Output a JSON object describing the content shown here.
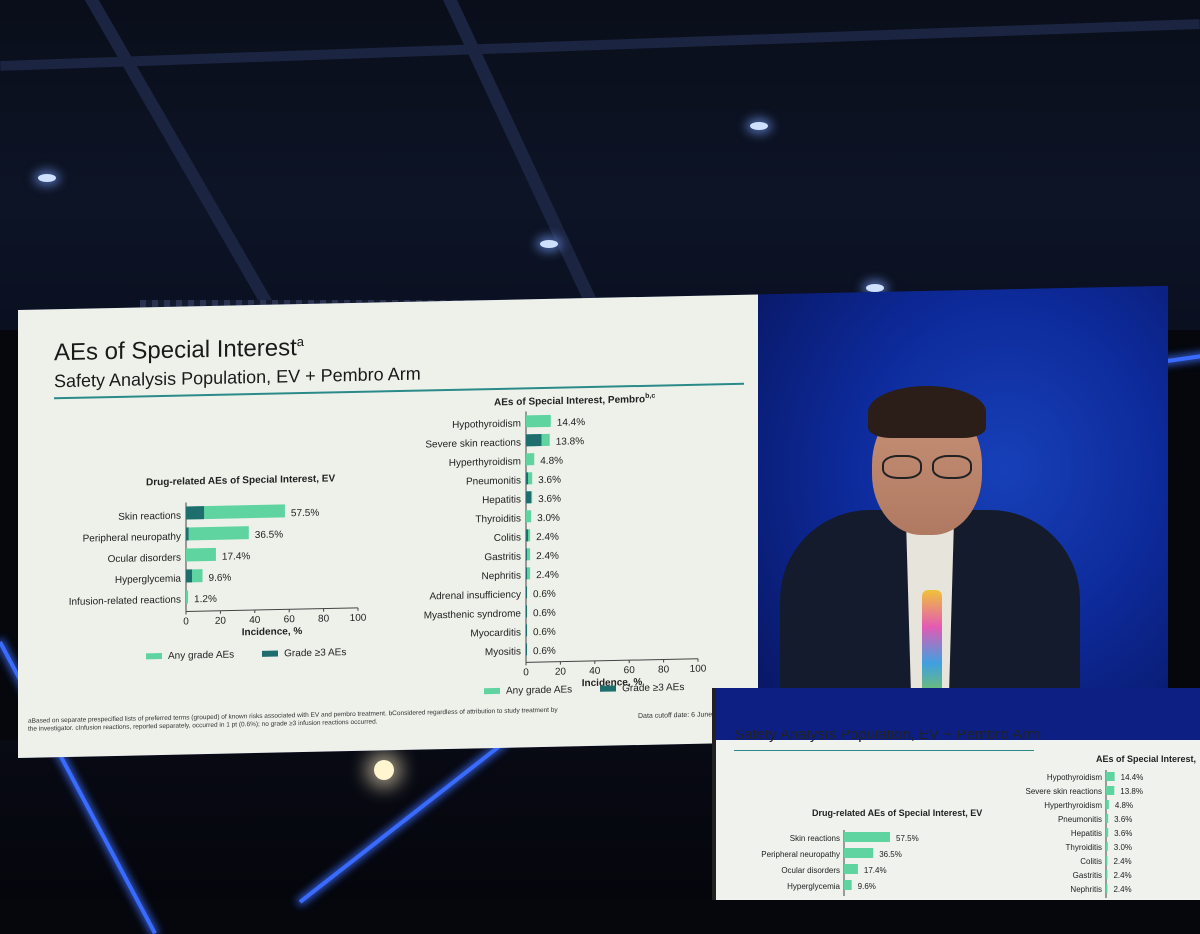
{
  "slide": {
    "title": "AEs of Special Interest",
    "title_sup": "a",
    "subtitle": "Safety Analysis Population, EV + Pembro Arm",
    "footnote": "aBased on separate prespecified lists of preferred terms (grouped) of known risks associated with EV and pembro treatment. bConsidered regardless of attribution to study treatment by the investigator. cInfusion reactions, reported separately, occurred in 1 pt (0.6%); no grade ≥3 infusion reactions occurred.",
    "cutoff": "Data cutoff date: 6 June 2025"
  },
  "chart_data": [
    {
      "type": "bar",
      "orientation": "horizontal",
      "title": "Drug-related AEs of Special Interest, EV",
      "xlabel": "Incidence, %",
      "xlim": [
        0,
        100
      ],
      "xticks": [
        "0",
        "20",
        "40",
        "60",
        "80",
        "100"
      ],
      "categories": [
        "Skin reactions",
        "Peripheral neuropathy",
        "Ocular disorders",
        "Hyperglycemia",
        "Infusion-related reactions"
      ],
      "series": [
        {
          "name": "Any grade AEs",
          "values": [
            57.5,
            36.5,
            17.4,
            9.6,
            1.2
          ]
        },
        {
          "name": "Grade ≥3 AEs",
          "values": [
            10.5,
            1.5,
            0,
            3.5,
            0
          ]
        }
      ],
      "labels": [
        "57.5%",
        "36.5%",
        "17.4%",
        "9.6%",
        "1.2%"
      ],
      "legend": "bottom"
    },
    {
      "type": "bar",
      "orientation": "horizontal",
      "title": "AEs of Special Interest, Pembro",
      "title_sup": "b,c",
      "xlabel": "Incidence, %",
      "xlim": [
        0,
        100
      ],
      "xticks": [
        "0",
        "20",
        "40",
        "60",
        "80",
        "100"
      ],
      "categories": [
        "Hypothyroidism",
        "Severe skin reactions",
        "Hyperthyroidism",
        "Pneumonitis",
        "Hepatitis",
        "Thyroiditis",
        "Colitis",
        "Gastritis",
        "Nephritis",
        "Adrenal insufficiency",
        "Myasthenic syndrome",
        "Myocarditis",
        "Myositis"
      ],
      "series": [
        {
          "name": "Any grade AEs",
          "values": [
            14.4,
            13.8,
            4.8,
            3.6,
            3.6,
            3.0,
            2.4,
            2.4,
            2.4,
            0.6,
            0.6,
            0.6,
            0.6
          ]
        },
        {
          "name": "Grade ≥3 AEs",
          "values": [
            0,
            9.0,
            0,
            1.2,
            3.0,
            0,
            1.2,
            0.6,
            0.6,
            0.6,
            0.6,
            0.6,
            0.6
          ]
        }
      ],
      "labels": [
        "14.4%",
        "13.8%",
        "4.8%",
        "3.6%",
        "3.6%",
        "3.0%",
        "2.4%",
        "2.4%",
        "2.4%",
        "0.6%",
        "0.6%",
        "0.6%",
        "0.6%"
      ],
      "legend": "bottom"
    }
  ],
  "colors": {
    "any_grade": "#5fd4a0",
    "grade3": "#1f6e6e",
    "accent_rule": "#2a8a8a"
  },
  "monitor": {
    "chart_title_right": "AEs of Special Interest,",
    "chart_title_left": "Drug-related AEs of Special Interest, EV",
    "header_fragment": "Safety Analysis Population, EV + Pembro Arm",
    "left_rows": [
      {
        "label": "Skin reactions",
        "value": "57.5%"
      },
      {
        "label": "Peripheral neuropathy",
        "value": "36.5%"
      },
      {
        "label": "Ocular disorders",
        "value": "17.4%"
      },
      {
        "label": "Hyperglycemia",
        "value": "9.6%"
      }
    ],
    "right_rows": [
      {
        "label": "Hypothyroidism",
        "value": "14.4%"
      },
      {
        "label": "Severe skin reactions",
        "value": "13.8%"
      },
      {
        "label": "Hyperthyroidism",
        "value": "4.8%"
      },
      {
        "label": "Pneumonitis",
        "value": "3.6%"
      },
      {
        "label": "Hepatitis",
        "value": "3.6%"
      },
      {
        "label": "Thyroiditis",
        "value": "3.0%"
      },
      {
        "label": "Colitis",
        "value": "2.4%"
      },
      {
        "label": "Gastritis",
        "value": "2.4%"
      },
      {
        "label": "Nephritis",
        "value": "2.4%"
      }
    ]
  }
}
